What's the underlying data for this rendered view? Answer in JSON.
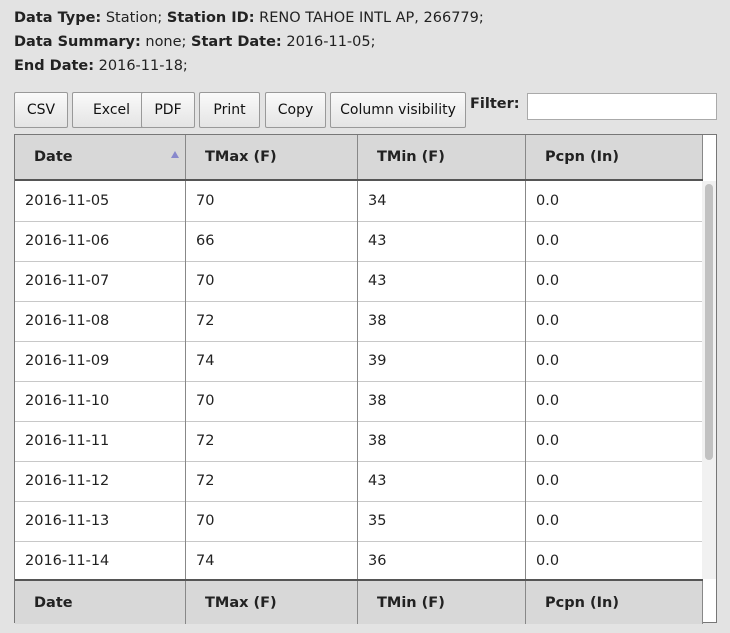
{
  "info": {
    "data_type_label": "Data Type:",
    "data_type_value": "Station;",
    "station_id_label": "Station ID:",
    "station_id_value": "RENO TAHOE INTL AP, 266779;",
    "data_summary_label": "Data Summary:",
    "data_summary_value": "none;",
    "start_date_label": "Start Date:",
    "start_date_value": "2016-11-05;",
    "end_date_label": "End Date:",
    "end_date_value": "2016-11-18;"
  },
  "toolbar": {
    "csv": "CSV",
    "excel": "Excel",
    "pdf": "PDF",
    "print": "Print",
    "copy": "Copy",
    "column_visibility": "Column visibility",
    "filter_label": "Filter:",
    "filter_value": ""
  },
  "table": {
    "headers": [
      "Date",
      "TMax (F)",
      "TMin (F)",
      "Pcpn (In)"
    ],
    "sorted_column": "Date",
    "sort_direction": "ascending",
    "rows": [
      [
        "2016-11-05",
        "70",
        "34",
        "0.0"
      ],
      [
        "2016-11-06",
        "66",
        "43",
        "0.0"
      ],
      [
        "2016-11-07",
        "70",
        "43",
        "0.0"
      ],
      [
        "2016-11-08",
        "72",
        "38",
        "0.0"
      ],
      [
        "2016-11-09",
        "74",
        "39",
        "0.0"
      ],
      [
        "2016-11-10",
        "70",
        "38",
        "0.0"
      ],
      [
        "2016-11-11",
        "72",
        "38",
        "0.0"
      ],
      [
        "2016-11-12",
        "72",
        "43",
        "0.0"
      ],
      [
        "2016-11-13",
        "70",
        "35",
        "0.0"
      ],
      [
        "2016-11-14",
        "74",
        "36",
        "0.0"
      ]
    ],
    "footers": [
      "Date",
      "TMax (F)",
      "TMin (F)",
      "Pcpn (In)"
    ]
  }
}
